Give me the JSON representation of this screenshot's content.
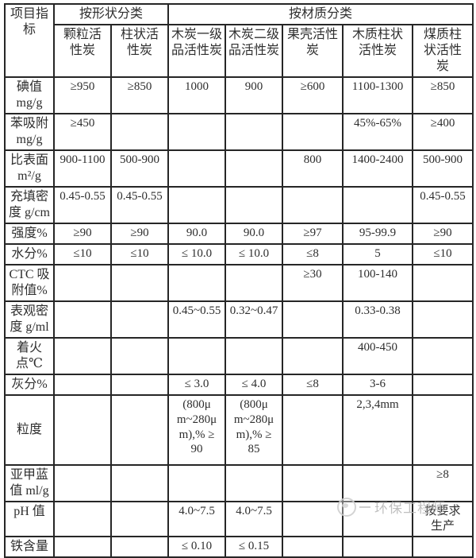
{
  "colors": {
    "border": "#262626",
    "text": "#2e2e2e",
    "watermark": "#b9b9b9",
    "background": "#ffffff"
  },
  "table": {
    "corner_header": "项目指\n标",
    "group_headers": [
      {
        "label": "按形状分类",
        "colspan": 2
      },
      {
        "label": "按材质分类",
        "colspan": 5
      }
    ],
    "col_headers": [
      "颗粒活\n性炭",
      "柱状活\n性炭",
      "木炭一级\n品活性炭",
      "木炭二级\n品活性炭",
      "果壳活性\n炭",
      "木质柱状\n活性炭",
      "煤质柱\n状活性\n炭"
    ],
    "rows": [
      {
        "label": "碘值\nmg/g",
        "cells": [
          "≥950",
          "≥850",
          "1000",
          "900",
          "≥600",
          "1100-1300",
          "≥850"
        ]
      },
      {
        "label": "苯吸附\nmg/g",
        "cells": [
          "≥450",
          "",
          "",
          "",
          "",
          "45%-65%",
          "≥400"
        ]
      },
      {
        "label": "比表面\nm²/g",
        "cells": [
          "900-1100",
          "500-900",
          "",
          "",
          "800",
          "1400-2400",
          "500-900"
        ]
      },
      {
        "label": "充填密\n度 g/cm",
        "cells": [
          "0.45-0.55",
          "0.45-0.55",
          "",
          "",
          "",
          "",
          "0.45-0.55"
        ]
      },
      {
        "label": "强度%",
        "cells": [
          "≥90",
          "≥90",
          "90.0",
          "90.0",
          "≥97",
          "95-99.9",
          "≥90"
        ]
      },
      {
        "label": "水分%",
        "cells": [
          "≤10",
          "≤10",
          "≤ 10.0",
          "≤ 10.0",
          "≤8",
          "5",
          "≤10"
        ]
      },
      {
        "label": "CTC 吸\n附值%",
        "cells": [
          "",
          "",
          "",
          "",
          "≥30",
          "100-140",
          ""
        ]
      },
      {
        "label": "表观密\n度 g/ml",
        "cells": [
          "",
          "",
          "0.45~0.55",
          "0.32~0.47",
          "",
          "0.33-0.38",
          ""
        ]
      },
      {
        "label": "着火\n点℃",
        "cells": [
          "",
          "",
          "",
          "",
          "",
          "400-450",
          ""
        ]
      },
      {
        "label": "灰分%",
        "cells": [
          "",
          "",
          "≤ 3.0",
          "≤ 4.0",
          "≤8",
          "3-6",
          ""
        ]
      },
      {
        "label": "粒度",
        "cells": [
          "",
          "",
          "(800μ\nm~280μ\nm),% ≥\n90",
          "(800μ\nm~280μ\nm),% ≥\n85",
          "",
          "2,3,4mm",
          ""
        ]
      },
      {
        "label": "亚甲蓝\n值 ml/g",
        "cells": [
          "",
          "",
          "",
          "",
          "",
          "",
          "≥8"
        ]
      },
      {
        "label": "pH 值",
        "cells": [
          "",
          "",
          "4.0~7.5",
          "4.0~7.5",
          "",
          "",
          "按要求\n生产"
        ]
      },
      {
        "label": "铁含量",
        "cells": [
          "",
          "",
          "≤ 0.10",
          "≤ 0.15",
          "",
          "",
          ""
        ]
      }
    ]
  },
  "watermark": {
    "label": "环保工程师"
  }
}
